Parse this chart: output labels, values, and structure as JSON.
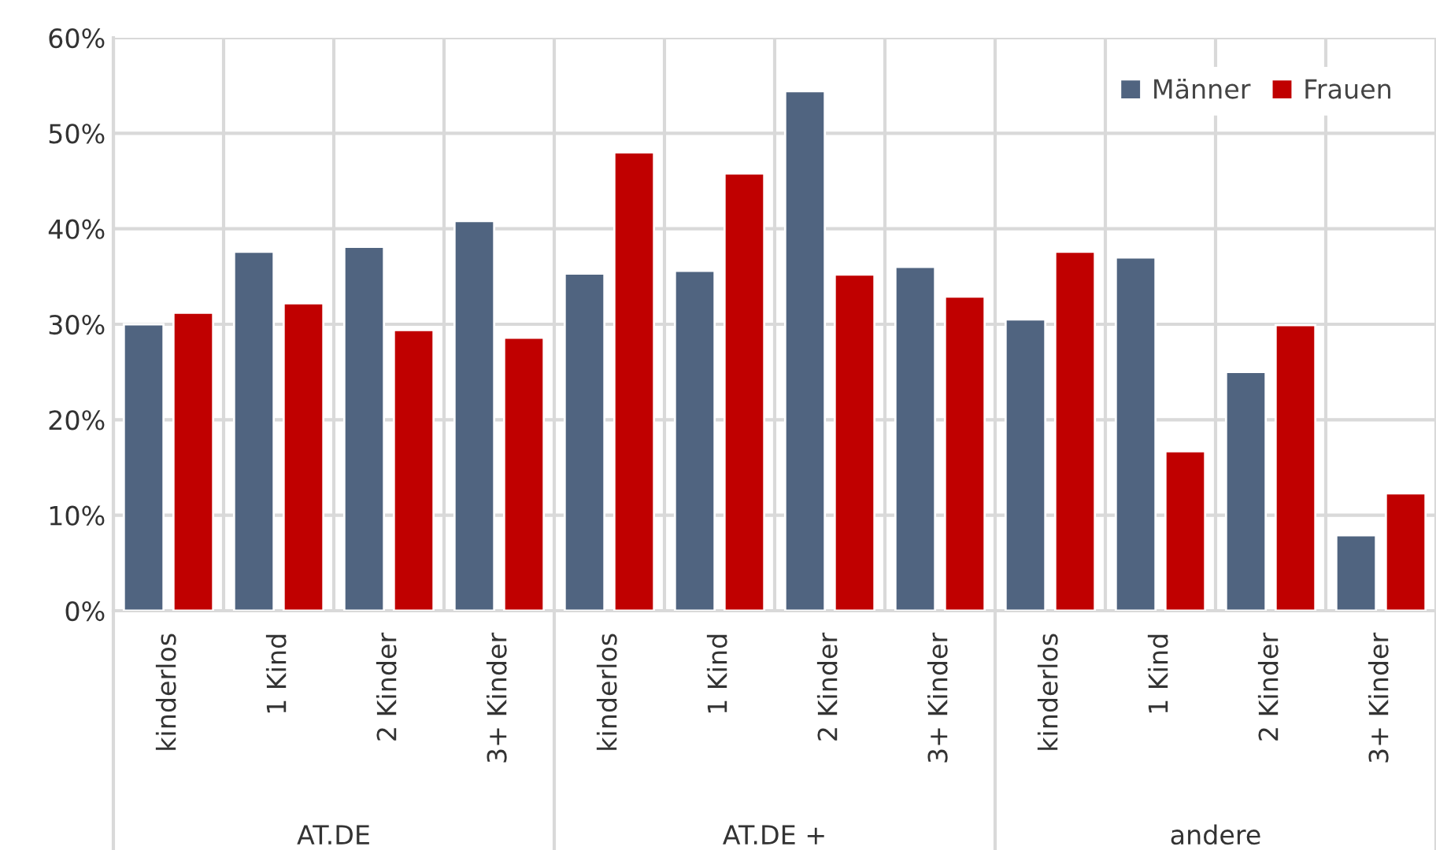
{
  "chart_data": {
    "type": "bar",
    "categories": [
      "kinderlos",
      "1 Kind",
      "2 Kinder",
      "3+ Kinder",
      "kinderlos",
      "1 Kind",
      "2 Kinder",
      "3+ Kinder",
      "kinderlos",
      "1 Kind",
      "2 Kinder",
      "3+ Kinder"
    ],
    "series": [
      {
        "name": "Männer",
        "color": "#506480",
        "values": [
          30.0,
          37.6,
          38.1,
          40.8,
          35.3,
          35.6,
          54.4,
          36.0,
          30.5,
          37.0,
          25.0,
          7.9
        ]
      },
      {
        "name": "Frauen",
        "color": "#c00000",
        "values": [
          31.2,
          32.2,
          29.4,
          28.6,
          48.0,
          45.8,
          35.2,
          32.9,
          37.6,
          16.7,
          29.9,
          12.3
        ]
      }
    ],
    "annotations": [
      "AT.DE",
      "AT.DE +",
      "andere"
    ],
    "ylim": [
      0,
      60
    ],
    "yticks": [
      {
        "value": 0,
        "label": "0%"
      },
      {
        "value": 10,
        "label": "10%"
      },
      {
        "value": 20,
        "label": "20%"
      },
      {
        "value": 30,
        "label": "30%"
      },
      {
        "value": 40,
        "label": "40%"
      },
      {
        "value": 50,
        "label": "50%"
      },
      {
        "value": 60,
        "label": "60%"
      }
    ],
    "grid": true,
    "legend": "top right"
  }
}
